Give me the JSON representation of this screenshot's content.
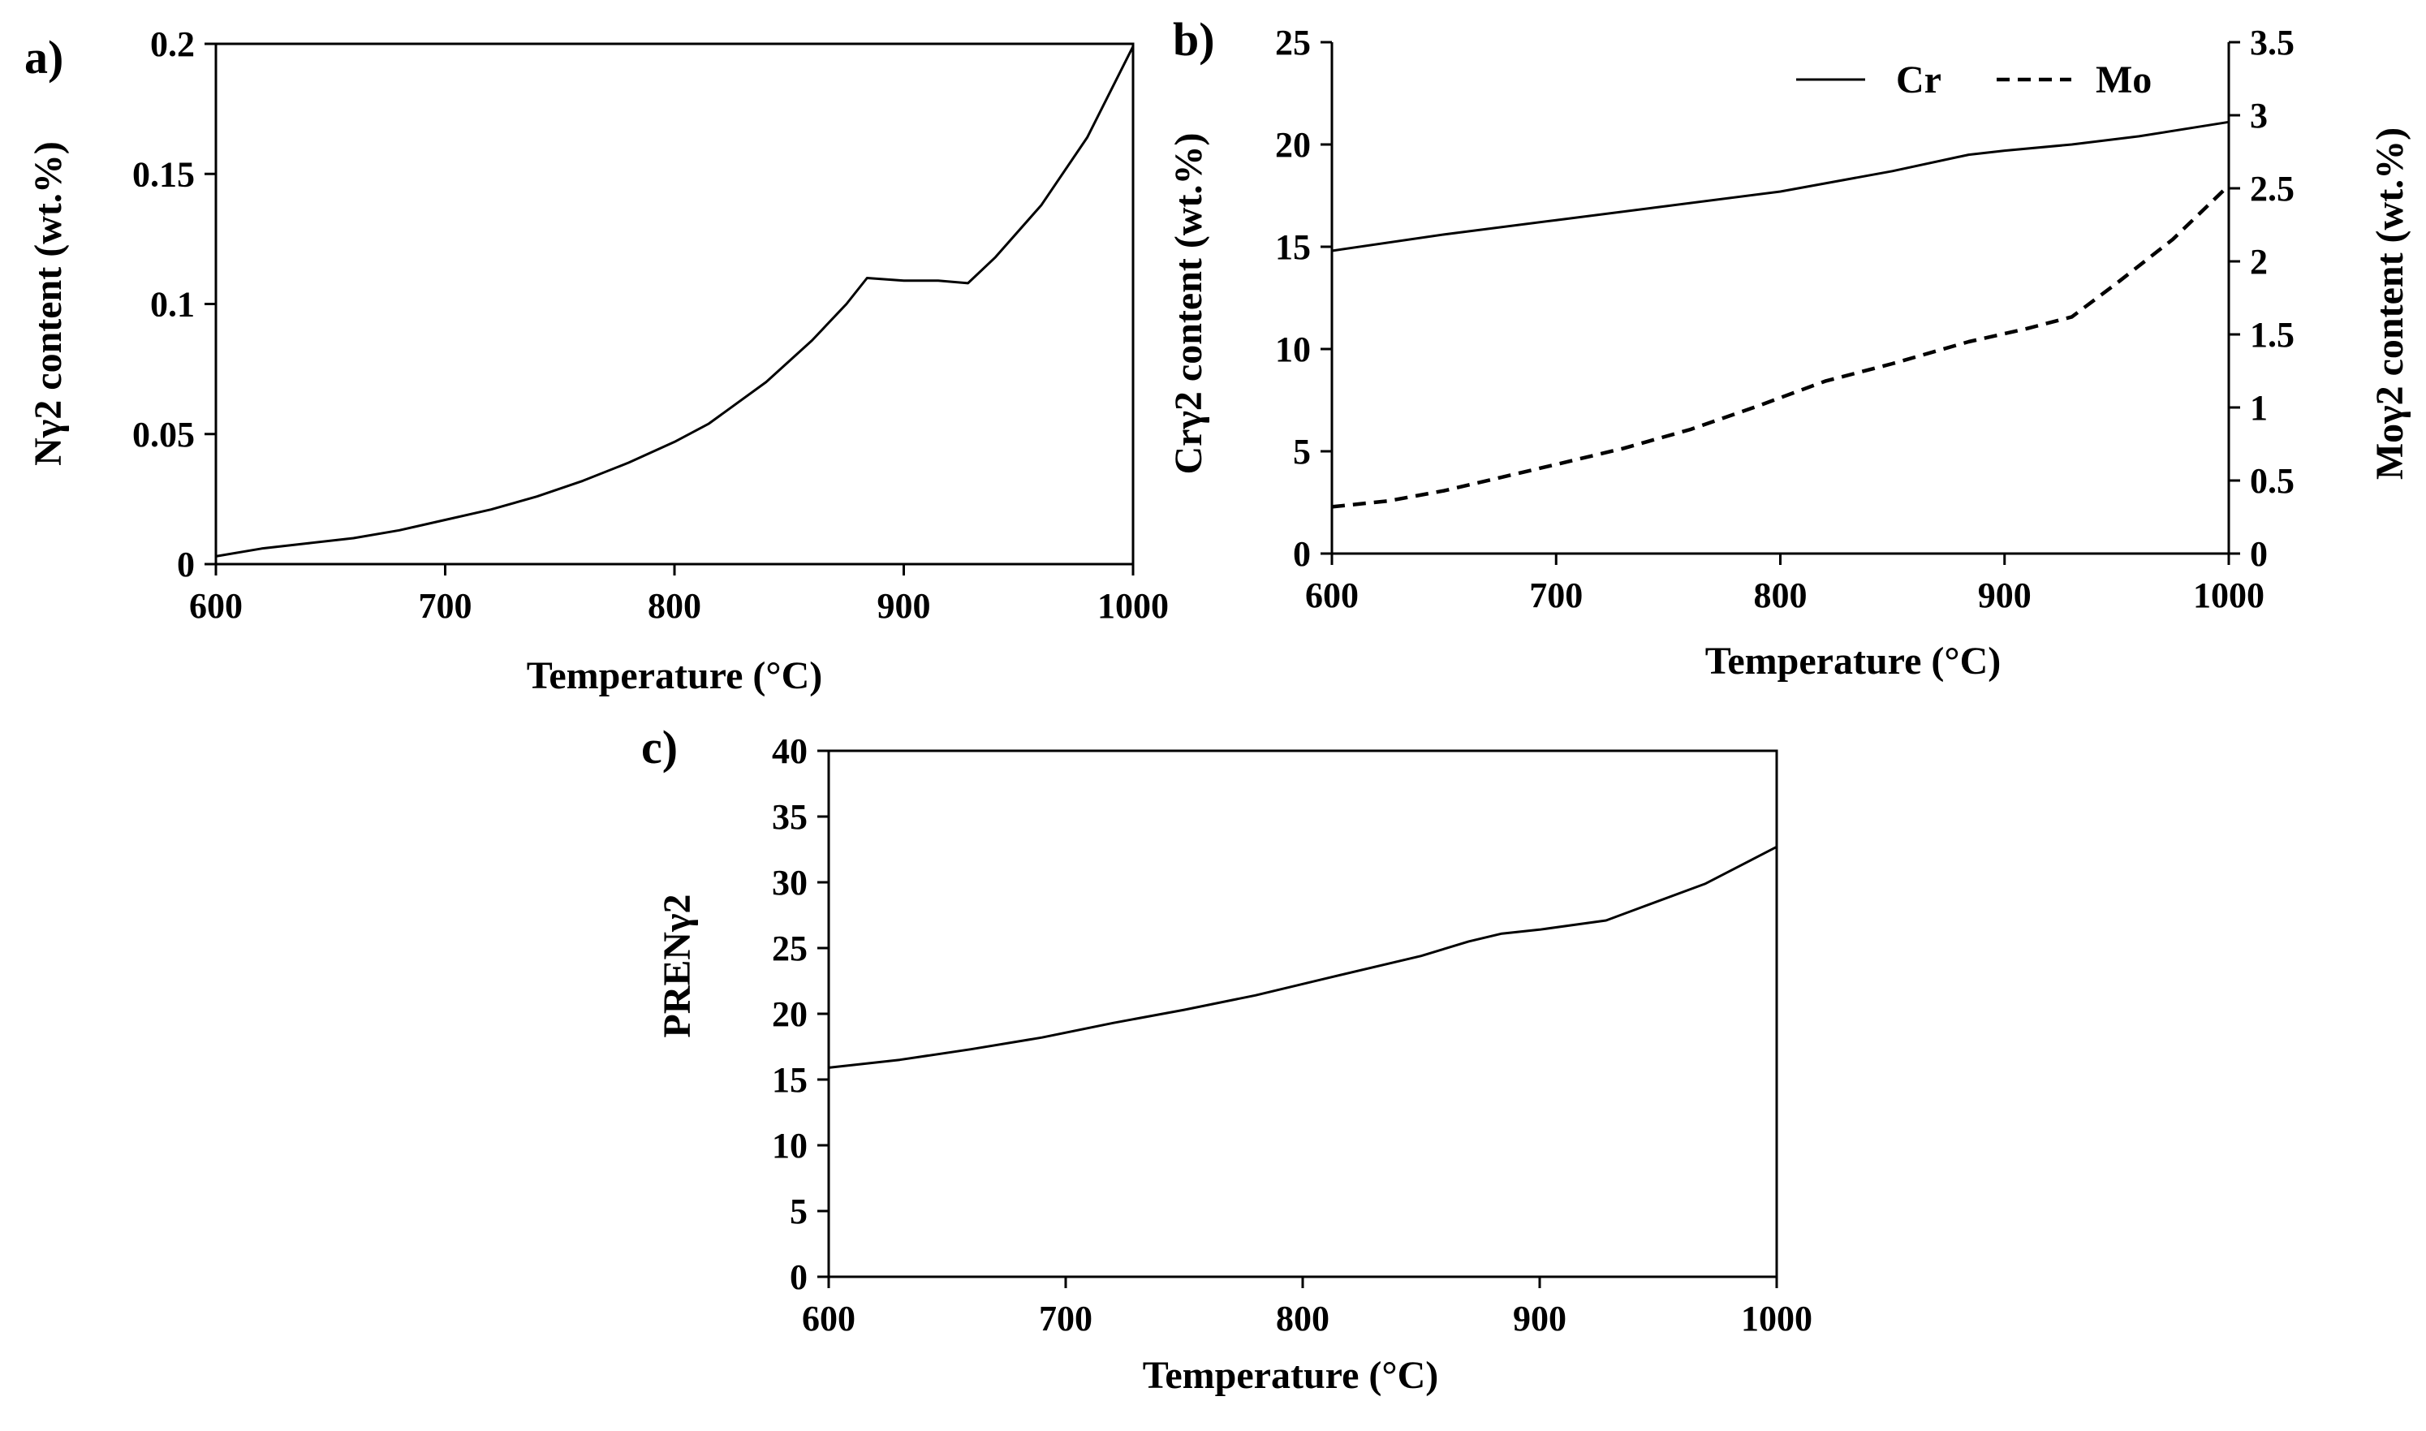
{
  "chart_data": [
    {
      "panel": "a)",
      "type": "line",
      "xlabel": "Temperature (°C)",
      "ylabel": "Nγ2 content (wt.%)",
      "xlim": [
        600,
        1000
      ],
      "ylim": [
        0,
        0.2
      ],
      "xticks": [
        "600",
        "700",
        "800",
        "900",
        "1000"
      ],
      "yticks": [
        "0",
        "0.05",
        "0.1",
        "0.15",
        "0.2"
      ],
      "series": [
        {
          "name": "N",
          "style": "solid",
          "x": [
            600,
            620,
            640,
            660,
            680,
            700,
            720,
            740,
            760,
            780,
            800,
            815,
            840,
            860,
            875,
            884,
            900,
            915,
            928,
            940,
            960,
            980,
            1000
          ],
          "y": [
            0.003,
            0.006,
            0.008,
            0.01,
            0.013,
            0.017,
            0.021,
            0.026,
            0.032,
            0.039,
            0.047,
            0.054,
            0.07,
            0.086,
            0.1,
            0.11,
            0.109,
            0.109,
            0.108,
            0.118,
            0.138,
            0.164,
            0.199
          ]
        }
      ]
    },
    {
      "panel": "b)",
      "type": "line",
      "xlabel": "Temperature (°C)",
      "ylabel_left": "Crγ2 content (wt.%)",
      "ylabel_right": "Moγ2 content (wt.%)",
      "xlim": [
        600,
        1000
      ],
      "ylim_left": [
        0,
        25
      ],
      "ylim_right": [
        0,
        3.5
      ],
      "xticks": [
        "600",
        "700",
        "800",
        "900",
        "1000"
      ],
      "yticks_left": [
        "0",
        "5",
        "10",
        "15",
        "20",
        "25"
      ],
      "yticks_right": [
        "0",
        "0.5",
        "1",
        "1.5",
        "2",
        "2.5",
        "3",
        "3.5"
      ],
      "legend": [
        "Cr",
        "Mo"
      ],
      "legend_position": "top-right",
      "series": [
        {
          "name": "Cr",
          "style": "solid",
          "axis": "left",
          "x": [
            600,
            650,
            700,
            750,
            800,
            850,
            884,
            900,
            930,
            960,
            1000
          ],
          "y": [
            14.8,
            15.6,
            16.3,
            17.0,
            17.7,
            18.7,
            19.5,
            19.7,
            20.0,
            20.4,
            21.1
          ]
        },
        {
          "name": "Mo",
          "style": "dashed",
          "axis": "right",
          "x": [
            600,
            625,
            650,
            675,
            700,
            730,
            760,
            790,
            820,
            850,
            884,
            910,
            930,
            950,
            975,
            1000
          ],
          "y": [
            0.32,
            0.36,
            0.43,
            0.52,
            0.61,
            0.72,
            0.85,
            1.01,
            1.18,
            1.3,
            1.45,
            1.54,
            1.62,
            1.85,
            2.15,
            2.52
          ]
        }
      ]
    },
    {
      "panel": "c)",
      "type": "line",
      "xlabel": "Temperature (°C)",
      "ylabel": "PRENγ2",
      "xlim": [
        600,
        1000
      ],
      "ylim": [
        0,
        40
      ],
      "xticks": [
        "600",
        "700",
        "800",
        "900",
        "1000"
      ],
      "yticks": [
        "0",
        "5",
        "10",
        "15",
        "20",
        "25",
        "30",
        "35",
        "40"
      ],
      "series": [
        {
          "name": "PREN",
          "style": "solid",
          "x": [
            600,
            630,
            660,
            690,
            720,
            750,
            780,
            810,
            850,
            870,
            884,
            900,
            928,
            940,
            970,
            1000
          ],
          "y": [
            15.9,
            16.5,
            17.3,
            18.2,
            19.3,
            20.3,
            21.4,
            22.7,
            24.4,
            25.5,
            26.1,
            26.4,
            27.1,
            27.9,
            29.9,
            32.7
          ]
        }
      ]
    }
  ]
}
